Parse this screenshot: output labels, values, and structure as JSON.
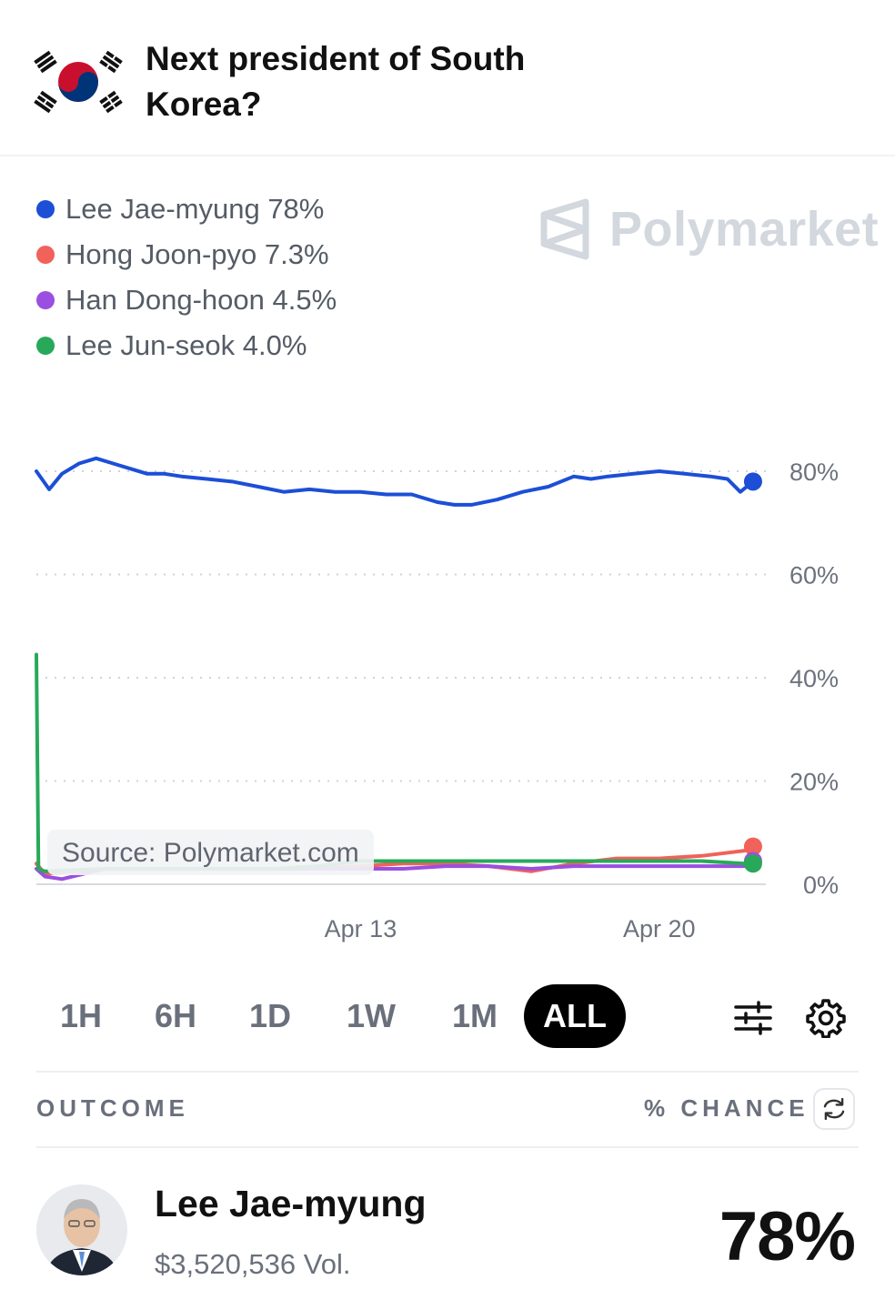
{
  "market": {
    "title": "Next president of South Korea?"
  },
  "legend": [
    {
      "name": "Lee Jae-myung",
      "pct": "78%",
      "color": "#1c4fd6"
    },
    {
      "name": "Hong Joon-pyo",
      "pct": "7.3%",
      "color": "#f0625a"
    },
    {
      "name": "Han Dong-hoon",
      "pct": "4.5%",
      "color": "#9b4fe0"
    },
    {
      "name": "Lee Jun-seok",
      "pct": "4.0%",
      "color": "#28a95a"
    }
  ],
  "watermark": "Polymarket",
  "source_label": "Source: Polymarket.com",
  "chart_data": {
    "type": "line",
    "yticks": [
      "80%",
      "60%",
      "40%",
      "20%",
      "0%"
    ],
    "ylim": [
      0,
      80
    ],
    "xticks": [
      {
        "label": "Apr 13",
        "day": 13
      },
      {
        "label": "Apr 20",
        "day": 20
      }
    ],
    "xlim_days": [
      5.4,
      22.5
    ],
    "grid": true,
    "series": [
      {
        "name": "Lee Jae-myung",
        "color": "#1c4fd6",
        "x": [
          5.4,
          5.7,
          6.0,
          6.4,
          6.8,
          7.2,
          7.6,
          8.0,
          8.4,
          8.8,
          9.4,
          10.0,
          10.6,
          11.2,
          11.8,
          12.4,
          13.0,
          13.6,
          14.2,
          14.8,
          15.2,
          15.6,
          16.2,
          16.8,
          17.4,
          18.0,
          18.4,
          18.8,
          19.4,
          20.0,
          20.6,
          21.2,
          21.6,
          21.9,
          22.2
        ],
        "y": [
          80,
          76.5,
          79.5,
          81.5,
          82.5,
          81.5,
          80.5,
          79.5,
          79.5,
          79,
          78.5,
          78,
          77,
          76,
          76.5,
          76,
          76,
          75.5,
          75.5,
          74,
          73.5,
          73.5,
          74.5,
          76,
          77,
          79,
          78.5,
          79,
          79.5,
          80,
          79.5,
          79,
          78.5,
          76,
          78
        ]
      },
      {
        "name": "Hong Joon-pyo",
        "color": "#f0625a",
        "x": [
          5.4,
          5.6,
          7.0,
          9.0,
          11.0,
          12.0,
          13.0,
          14.0,
          15.0,
          16.0,
          17.0,
          18.0,
          19.0,
          20.0,
          21.0,
          22.0,
          22.2
        ],
        "y": [
          4,
          2,
          3,
          3,
          3,
          3,
          3.5,
          4,
          4,
          3.5,
          2.5,
          4,
          5,
          5,
          5.5,
          6.5,
          7.3
        ]
      },
      {
        "name": "Han Dong-hoon",
        "color": "#9b4fe0",
        "x": [
          5.4,
          5.6,
          6.0,
          7.0,
          9.0,
          11.0,
          13.0,
          14.0,
          15.0,
          16.0,
          17.0,
          18.0,
          19.0,
          20.0,
          21.0,
          22.0,
          22.2
        ],
        "y": [
          3,
          1.5,
          1,
          3,
          3,
          3,
          3,
          3,
          3.5,
          3.5,
          3,
          3.5,
          3.5,
          3.5,
          3.5,
          3.5,
          4.5
        ]
      },
      {
        "name": "Lee Jun-seok",
        "color": "#28a95a",
        "x": [
          5.4,
          5.45,
          5.6,
          7.0,
          9.0,
          11.0,
          12.0,
          13.0,
          14.0,
          15.0,
          16.0,
          17.0,
          18.0,
          19.0,
          20.0,
          21.0,
          22.0,
          22.2
        ],
        "y": [
          44.5,
          3,
          2.5,
          3,
          3,
          3,
          3.5,
          4.5,
          4.5,
          4.5,
          4.5,
          4.5,
          4.5,
          4.5,
          4.5,
          4.5,
          4,
          4.0
        ]
      }
    ]
  },
  "timeframes": [
    "1H",
    "6H",
    "1D",
    "1W",
    "1M",
    "ALL"
  ],
  "active_timeframe": "ALL",
  "table": {
    "outcome_header": "OUTCOME",
    "chance_header": "% CHANCE"
  },
  "top_outcome": {
    "name": "Lee Jae-myung",
    "volume": "$3,520,536 Vol.",
    "chance": "78%"
  }
}
